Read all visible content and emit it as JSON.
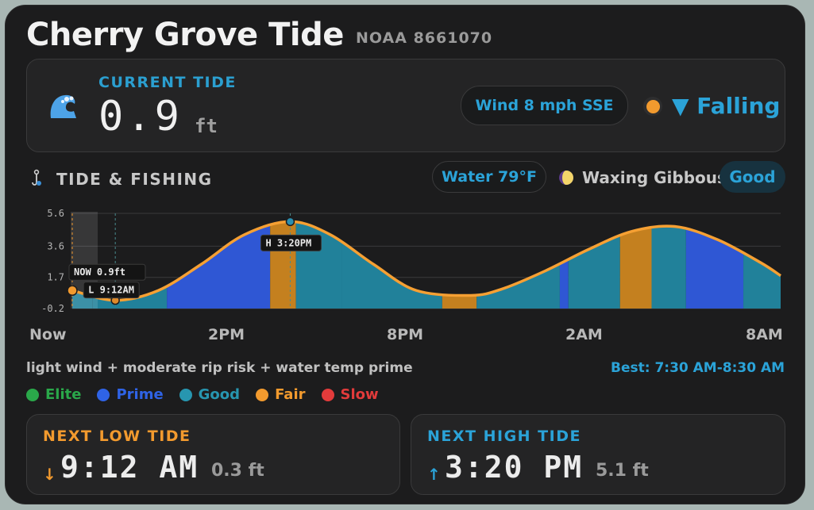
{
  "header": {
    "title": "Cherry Grove Tide",
    "station": "NOAA 8661070"
  },
  "current": {
    "label": "CURRENT TIDE",
    "value": "0.9",
    "unit": "ft",
    "icon": "wave-icon",
    "wind": "Wind 8 mph SSE",
    "trend_dot_color": "#f29a2e",
    "trend": "▼ Falling"
  },
  "fishing": {
    "icon": "fishing-hook-icon",
    "title": "TIDE & FISHING",
    "water": "Water 79°F",
    "moon_icon": "waxing-gibbous-moon-icon",
    "moon": "Waxing Gibbous",
    "rating": "Good",
    "conditions": "light wind + moderate rip risk + water temp prime",
    "best": "Best: 7:30 AM-8:30 AM"
  },
  "legend": [
    {
      "label": "Elite",
      "color": "#2aa84a"
    },
    {
      "label": "Prime",
      "color": "#2f63e6"
    },
    {
      "label": "Good",
      "color": "#2796b0"
    },
    {
      "label": "Fair",
      "color": "#f29a2e"
    },
    {
      "label": "Slow",
      "color": "#e23b3b"
    }
  ],
  "chart_data": {
    "type": "area",
    "y_ticks": [
      "5.6",
      "3.6",
      "1.7",
      "-0.2"
    ],
    "ylim": [
      -0.2,
      5.6
    ],
    "x_labels": [
      "Now",
      "2PM",
      "8PM",
      "2AM",
      "8AM"
    ],
    "x_hours": [
      0,
      6,
      12,
      18,
      24
    ],
    "xlim": [
      0,
      24.7
    ],
    "series": [
      {
        "x": [
          0,
          1.5,
          3.0,
          4.5,
          6.0,
          7.6,
          9.0,
          10.5,
          12.0,
          13.9,
          15.0,
          16.5,
          18.0,
          19.5,
          21.0,
          22.5,
          24.0,
          24.7
        ],
        "y": [
          0.9,
          0.3,
          0.9,
          2.5,
          4.3,
          5.1,
          4.3,
          2.5,
          0.9,
          0.6,
          1.0,
          2.1,
          3.4,
          4.5,
          4.8,
          4.0,
          2.6,
          1.8
        ]
      }
    ],
    "quality_segments": [
      {
        "from": 0,
        "to": 0.7,
        "q": "good"
      },
      {
        "from": 0.7,
        "to": 3.3,
        "q": "good"
      },
      {
        "from": 3.3,
        "to": 6.9,
        "q": "prime"
      },
      {
        "from": 6.9,
        "to": 7.8,
        "q": "fair"
      },
      {
        "from": 7.8,
        "to": 9.4,
        "q": "good"
      },
      {
        "from": 9.4,
        "to": 12.9,
        "q": "good"
      },
      {
        "from": 12.9,
        "to": 14.1,
        "q": "fair"
      },
      {
        "from": 14.1,
        "to": 17.0,
        "q": "good"
      },
      {
        "from": 17.0,
        "to": 17.3,
        "q": "prime"
      },
      {
        "from": 17.3,
        "to": 19.1,
        "q": "good"
      },
      {
        "from": 19.1,
        "to": 20.2,
        "q": "fair"
      },
      {
        "from": 20.2,
        "to": 21.4,
        "q": "good"
      },
      {
        "from": 21.4,
        "to": 23.4,
        "q": "prime"
      },
      {
        "from": 23.4,
        "to": 24.7,
        "q": "good"
      }
    ],
    "markers": [
      {
        "x": 0,
        "y": 0.9,
        "kind": "now",
        "label": "NOW  0.9ft"
      },
      {
        "x": 1.5,
        "y": 0.3,
        "kind": "low",
        "label": "L 9:12AM"
      },
      {
        "x": 7.6,
        "y": 5.1,
        "kind": "high",
        "label": "H 3:20PM"
      }
    ]
  },
  "next_low": {
    "label": "NEXT LOW TIDE",
    "arrow": "↓",
    "time": "9:12 AM",
    "height": "0.3 ft"
  },
  "next_high": {
    "label": "NEXT HIGH TIDE",
    "arrow": "↑",
    "time": "3:20 PM",
    "height": "5.1 ft"
  }
}
